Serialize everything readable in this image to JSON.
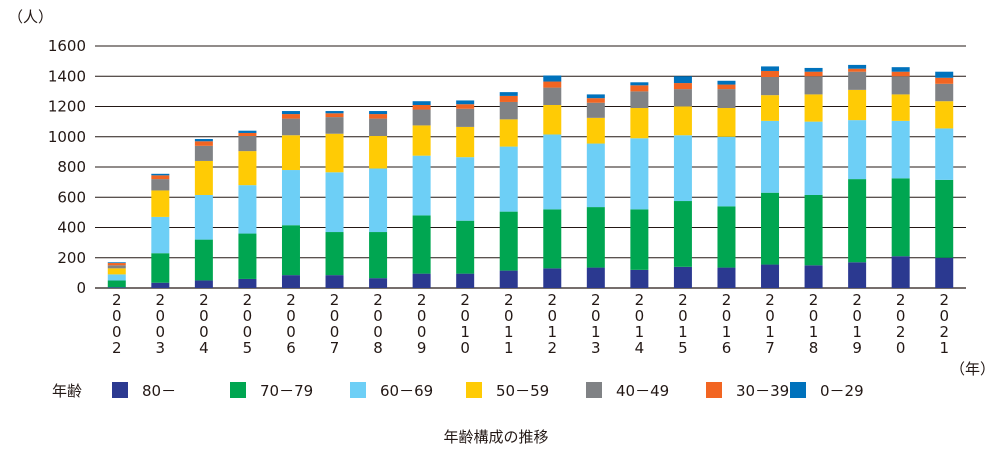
{
  "chart_data": {
    "type": "bar",
    "stacked": true,
    "title": "年齢構成の推移",
    "ylabel": "（人）",
    "xlabel": "（年）",
    "ylim": [
      0,
      1600
    ],
    "yticks": [
      0,
      200,
      400,
      600,
      800,
      1000,
      1200,
      1400,
      1600
    ],
    "grid": true,
    "legend_title": "年齢",
    "legend_position": "bottom",
    "categories": [
      "2002",
      "2003",
      "2004",
      "2005",
      "2006",
      "2007",
      "2008",
      "2009",
      "2010",
      "2011",
      "2012",
      "2013",
      "2014",
      "2015",
      "2016",
      "2017",
      "2018",
      "2019",
      "2020",
      "2021"
    ],
    "series": [
      {
        "name": "80－",
        "color": "#2b3990",
        "values": [
          5,
          35,
          50,
          60,
          85,
          85,
          65,
          95,
          95,
          115,
          130,
          135,
          120,
          140,
          135,
          155,
          150,
          170,
          210,
          200
        ]
      },
      {
        "name": "70－79",
        "color": "#00a651",
        "values": [
          45,
          195,
          270,
          300,
          330,
          285,
          305,
          385,
          350,
          390,
          390,
          400,
          400,
          435,
          405,
          475,
          465,
          550,
          515,
          515
        ]
      },
      {
        "name": "60－69",
        "color": "#6dcff6",
        "values": [
          40,
          240,
          295,
          320,
          365,
          395,
          420,
          395,
          420,
          430,
          495,
          420,
          470,
          435,
          460,
          475,
          485,
          390,
          380,
          340
        ]
      },
      {
        "name": "50－59",
        "color": "#ffcb05",
        "values": [
          40,
          175,
          225,
          225,
          230,
          255,
          215,
          200,
          200,
          180,
          195,
          170,
          200,
          190,
          190,
          170,
          180,
          200,
          175,
          180
        ]
      },
      {
        "name": "40－49",
        "color": "#808285",
        "values": [
          20,
          75,
          100,
          100,
          110,
          110,
          115,
          105,
          120,
          115,
          115,
          100,
          110,
          115,
          125,
          120,
          120,
          120,
          120,
          115
        ]
      },
      {
        "name": "30－39",
        "color": "#f26522",
        "values": [
          15,
          25,
          30,
          20,
          30,
          25,
          30,
          30,
          30,
          40,
          40,
          30,
          40,
          40,
          30,
          40,
          30,
          20,
          30,
          40
        ]
      },
      {
        "name": "0－29",
        "color": "#0072bc",
        "values": [
          5,
          10,
          15,
          15,
          20,
          15,
          20,
          25,
          25,
          25,
          40,
          25,
          20,
          45,
          25,
          30,
          25,
          25,
          30,
          40
        ]
      }
    ]
  }
}
